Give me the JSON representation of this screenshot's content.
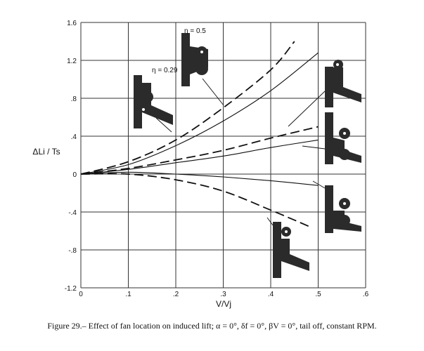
{
  "caption": "Figure 29.– Effect of fan location on induced lift; α = 0°, δf = 0°, βV = 0°, tail off, constant RPM.",
  "colors": {
    "ink": "#111111",
    "grid": "#333333",
    "silhouette": "#2b2b2b"
  },
  "chart_data": {
    "type": "line",
    "xlabel": "V/Vj",
    "ylabel": "ΔLi / Ts",
    "xlim": [
      0,
      0.6
    ],
    "ylim": [
      -1.2,
      1.6
    ],
    "xticks": [
      0,
      0.1,
      0.2,
      0.3,
      0.4,
      0.5,
      0.6
    ],
    "yticks": [
      -1.2,
      -0.8,
      -0.4,
      0,
      0.4,
      0.8,
      1.2,
      1.6
    ],
    "xtick_labels": [
      "0",
      ".1",
      ".2",
      ".3",
      ".4",
      ".5",
      ".6"
    ],
    "ytick_labels": [
      "-1.2",
      "-.8",
      "-.4",
      "0",
      ".4",
      ".8",
      "1.2",
      "1.6"
    ],
    "grid": true,
    "annotations": [
      "η = 0.5",
      "η = 0.29"
    ],
    "series": [
      {
        "style": "dashed",
        "x": [
          0,
          0.1,
          0.2,
          0.3,
          0.4,
          0.45
        ],
        "y": [
          0,
          0.13,
          0.36,
          0.7,
          1.1,
          1.4
        ]
      },
      {
        "style": "solid",
        "x": [
          0,
          0.1,
          0.2,
          0.3,
          0.4,
          0.5
        ],
        "y": [
          0,
          0.1,
          0.3,
          0.56,
          0.88,
          1.28
        ]
      },
      {
        "style": "dashed",
        "x": [
          0,
          0.1,
          0.2,
          0.3,
          0.4,
          0.5
        ],
        "y": [
          0,
          0.06,
          0.15,
          0.25,
          0.38,
          0.5
        ]
      },
      {
        "style": "solid",
        "x": [
          0,
          0.1,
          0.2,
          0.3,
          0.4,
          0.5
        ],
        "y": [
          0,
          0.05,
          0.12,
          0.19,
          0.28,
          0.36
        ]
      },
      {
        "style": "solid",
        "x": [
          0,
          0.1,
          0.2,
          0.3,
          0.4,
          0.5
        ],
        "y": [
          0,
          0.02,
          0.0,
          -0.03,
          -0.07,
          -0.12
        ]
      },
      {
        "style": "dashed",
        "x": [
          0,
          0.1,
          0.2,
          0.3,
          0.4,
          0.48
        ],
        "y": [
          0,
          0.0,
          -0.06,
          -0.18,
          -0.38,
          -0.55
        ]
      }
    ]
  }
}
